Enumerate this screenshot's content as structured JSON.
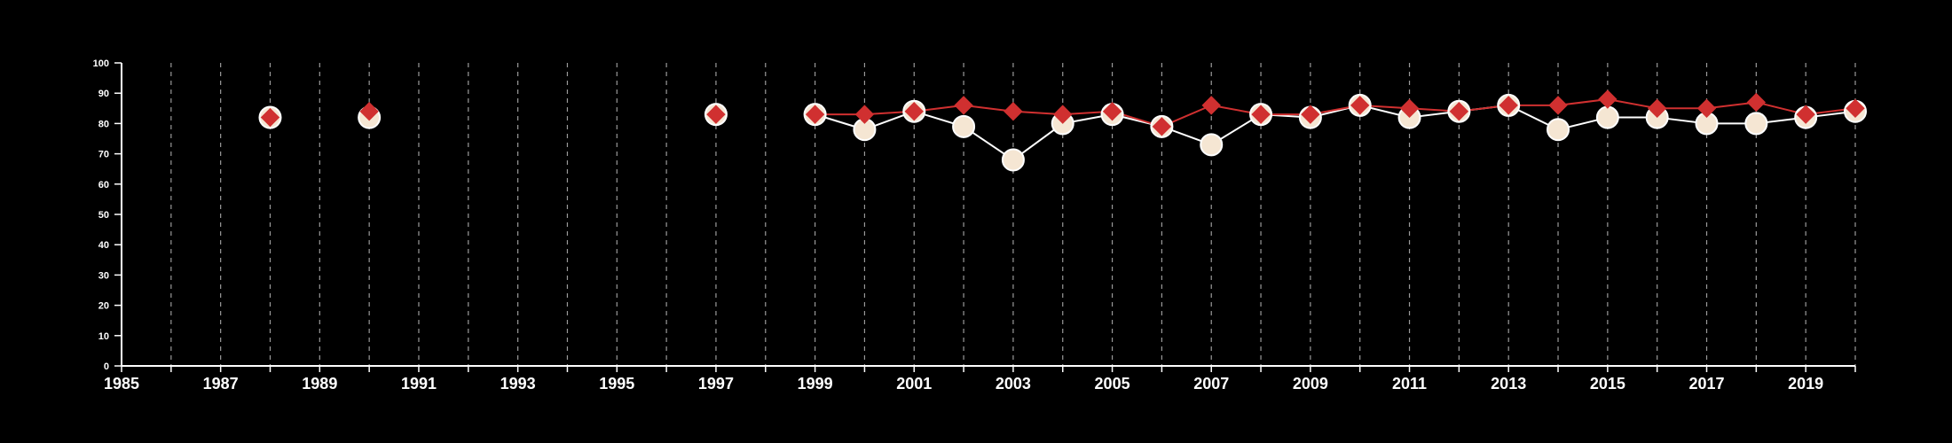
{
  "chart_data": {
    "type": "line",
    "title": "",
    "xlabel": "",
    "ylabel": "",
    "xlim": [
      1985,
      2020
    ],
    "ylim": [
      0,
      100
    ],
    "yticks": [
      0,
      10,
      20,
      30,
      40,
      50,
      60,
      70,
      80,
      90,
      100
    ],
    "xticks": [
      1985,
      1987,
      1989,
      1991,
      1993,
      1995,
      1997,
      1999,
      2001,
      2003,
      2005,
      2007,
      2009,
      2011,
      2013,
      2015,
      2017,
      2019
    ],
    "grid": "vertical dashed lines at every year",
    "x": [
      1988,
      1990,
      1997,
      1999,
      2000,
      2001,
      2002,
      2003,
      2004,
      2005,
      2006,
      2007,
      2008,
      2009,
      2010,
      2011,
      2012,
      2013,
      2014,
      2015,
      2016,
      2017,
      2018,
      2019,
      2020
    ],
    "series": [
      {
        "marker": "circle",
        "color": "#f5e6d3",
        "values": [
          82,
          82,
          83,
          83,
          78,
          84,
          79,
          68,
          80,
          83,
          79,
          73,
          83,
          82,
          86,
          82,
          84,
          86,
          78,
          82,
          82,
          80,
          80,
          82,
          84
        ]
      },
      {
        "marker": "diamond",
        "color": "#d03030",
        "values": [
          82,
          84,
          83,
          83,
          83,
          84,
          86,
          84,
          83,
          84,
          79,
          86,
          83,
          83,
          86,
          85,
          84,
          86,
          86,
          88,
          85,
          85,
          87,
          83,
          85
        ]
      }
    ]
  }
}
